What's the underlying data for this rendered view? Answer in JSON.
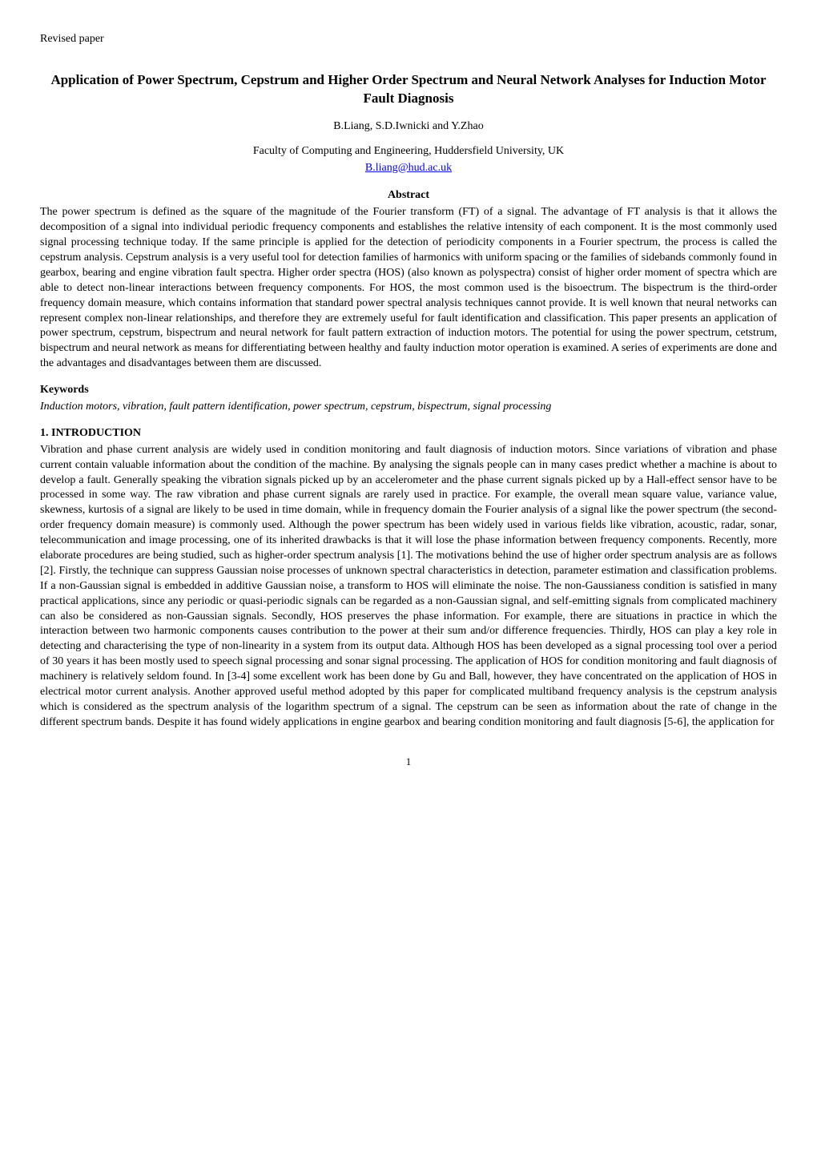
{
  "header": {
    "label": "Revised paper"
  },
  "title": "Application of Power Spectrum, Cepstrum and Higher Order Spectrum and Neural Network Analyses for Induction Motor Fault Diagnosis",
  "authors": "B.Liang, S.D.Iwnicki and Y.Zhao",
  "affiliation": "Faculty of Computing and Engineering, Huddersfield University, UK",
  "email": "B.liang@hud.ac.uk",
  "abstract": {
    "heading": "Abstract",
    "body": "The power spectrum is defined as the square of the magnitude of the Fourier transform (FT) of a signal. The advantage of FT analysis is that it allows the decomposition of a signal into individual periodic frequency components and establishes the relative intensity of each component. It is the most commonly used signal processing technique today. If the same principle is applied for the detection of periodicity components in a Fourier spectrum, the process is called the cepstrum analysis. Cepstrum analysis is a very useful tool for detection families of harmonics with uniform spacing or the families of sidebands commonly found in gearbox, bearing and engine vibration fault spectra. Higher order spectra (HOS) (also known as polyspectra) consist of higher order moment of spectra which are able to detect non-linear interactions between frequency components. For HOS, the most common used is the bisoectrum. The bispectrum is the third-order frequency domain measure, which contains information that standard power spectral analysis techniques cannot provide. It is well known that neural networks can represent complex non-linear relationships, and therefore they are extremely useful for fault identification and classification. This paper presents an application of power spectrum, cepstrum, bispectrum and neural network for fault pattern extraction of induction motors. The potential for using the power spectrum, cetstrum, bispectrum and neural network as means for differentiating between healthy and faulty induction motor operation is examined. A series of experiments are done and the advantages and disadvantages between them are discussed."
  },
  "keywords": {
    "heading": "Keywords",
    "body": "Induction motors, vibration, fault pattern identification, power spectrum, cepstrum, bispectrum, signal processing"
  },
  "section1": {
    "heading": "1. INTRODUCTION",
    "body": "Vibration and phase current analysis are widely used in condition monitoring and fault diagnosis of induction motors. Since variations of vibration and phase current contain valuable information about the condition of the machine. By analysing the signals people can in many cases predict whether a machine is about to develop a fault. Generally speaking the vibration signals picked up by an accelerometer and the phase current signals picked up by a Hall-effect sensor have to be processed in some way. The raw vibration and phase current signals are rarely used in practice. For example, the overall mean square value, variance value, skewness, kurtosis of a signal are likely to be used in time domain, while in frequency domain the Fourier analysis of a signal like the power spectrum (the second-order frequency domain measure) is commonly used. Although the power spectrum has been widely used in various fields like vibration, acoustic, radar, sonar, telecommunication and image processing, one of its inherited drawbacks is that it will lose the phase information between frequency components. Recently, more elaborate procedures are being studied, such as higher-order spectrum analysis [1]. The motivations behind the use of higher order spectrum analysis are as follows [2]. Firstly, the technique can suppress Gaussian noise processes of unknown spectral characteristics in detection, parameter estimation and classification problems. If a non-Gaussian signal is embedded in additive Gaussian noise, a transform to HOS will eliminate the noise. The non-Gaussianess condition is satisfied in many practical applications, since any periodic or quasi-periodic signals can be regarded as a non-Gaussian signal, and self-emitting signals from complicated machinery can also be considered as non-Gaussian signals. Secondly, HOS preserves the phase information. For example, there are situations in practice in which the interaction between two harmonic components causes contribution to the power at their sum and/or difference frequencies. Thirdly, HOS can play a key role in detecting and characterising the type of non-linearity in a system from its output data. Although HOS has been developed as a signal processing tool over a period of 30 years it has been mostly used to speech signal processing and sonar signal processing. The application of HOS for condition monitoring and fault diagnosis of machinery is relatively seldom found. In [3-4] some excellent work has been done by Gu and Ball, however, they have concentrated on the application of HOS in electrical motor current analysis. Another approved useful method adopted by this paper for complicated multiband frequency analysis is the cepstrum analysis which is considered as the spectrum analysis of the logarithm spectrum of a signal. The cepstrum can be seen as information about the rate of change in the different spectrum bands. Despite it has found widely applications in engine gearbox and bearing condition monitoring and fault diagnosis [5-6], the application for"
  },
  "pageNumber": "1"
}
